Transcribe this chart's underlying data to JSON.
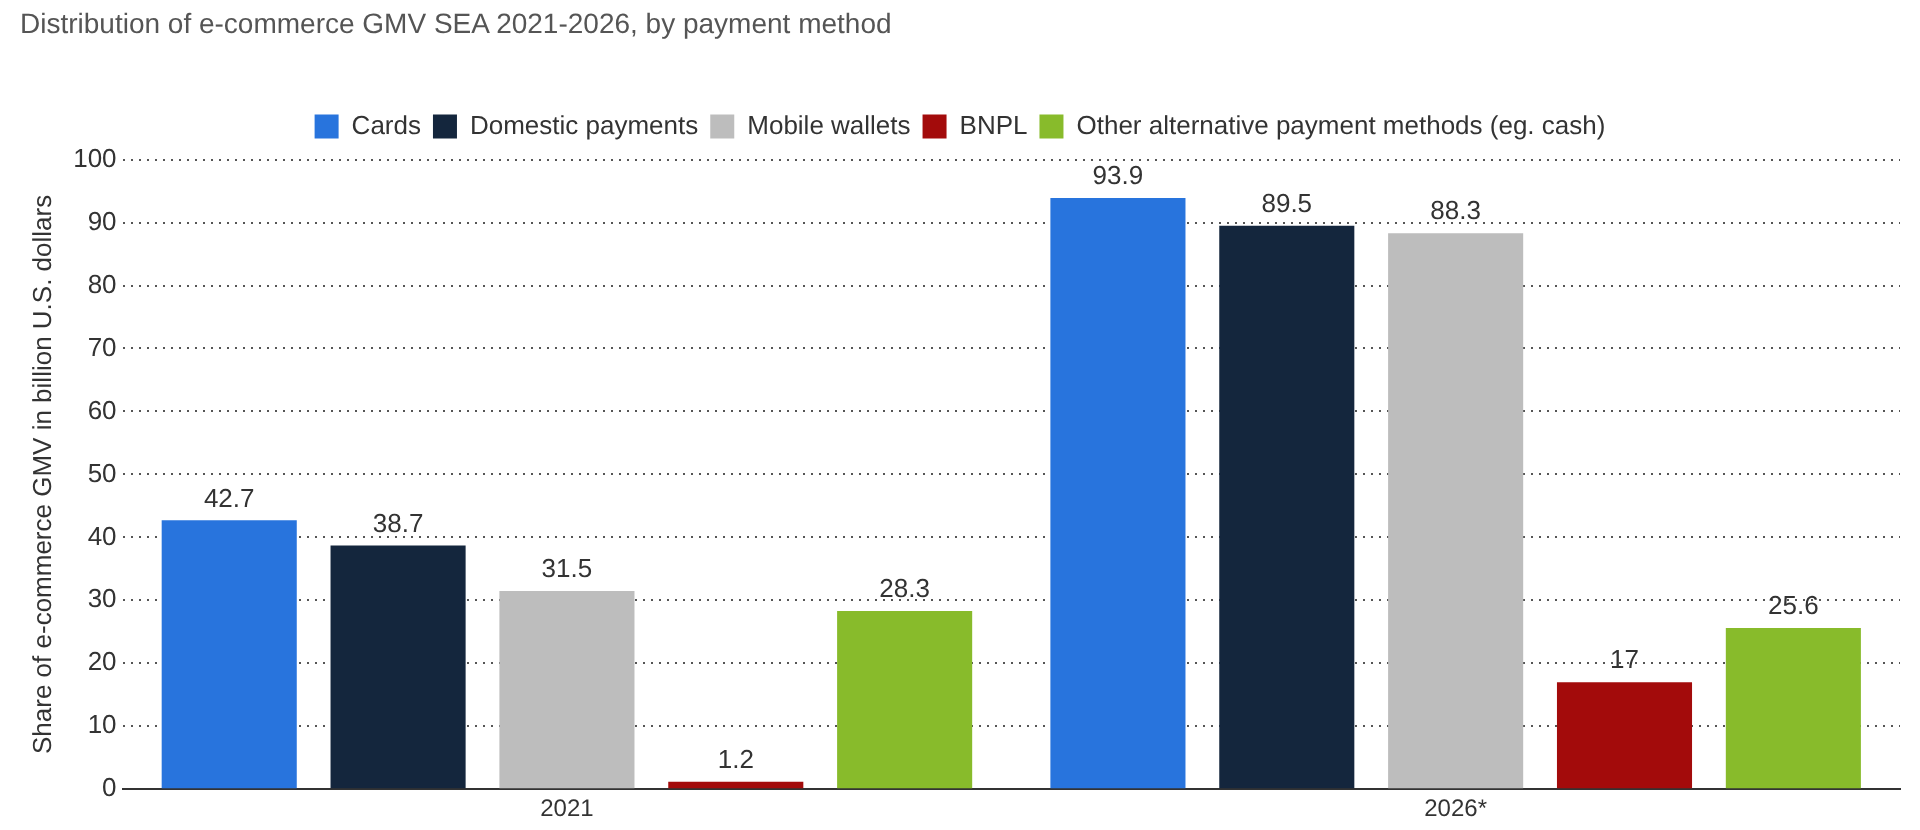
{
  "chart_data": {
    "type": "bar",
    "title": "Distribution of e-commerce GMV SEA 2021-2026, by payment method",
    "ylabel": "Share of e-commerce GMV in billion U.S. dollars",
    "categories": [
      "2021",
      "2026*"
    ],
    "series": [
      {
        "name": "Cards",
        "color": "#2874dd",
        "values": [
          42.7,
          93.9
        ]
      },
      {
        "name": "Domestic payments",
        "color": "#14263d",
        "values": [
          38.7,
          89.5
        ]
      },
      {
        "name": "Mobile wallets",
        "color": "#bdbdbd",
        "values": [
          31.5,
          88.3
        ]
      },
      {
        "name": "BNPL",
        "color": "#a30b0b",
        "values": [
          1.2,
          17
        ]
      },
      {
        "name": "Other alternative payment methods (eg. cash)",
        "color": "#88bb2b",
        "values": [
          28.3,
          25.6
        ]
      }
    ],
    "ylim": [
      0,
      100
    ],
    "yticks": [
      0,
      10,
      20,
      30,
      40,
      50,
      60,
      70,
      80,
      90,
      100
    ],
    "grid": "y",
    "legend": "top",
    "data_labels": true
  }
}
